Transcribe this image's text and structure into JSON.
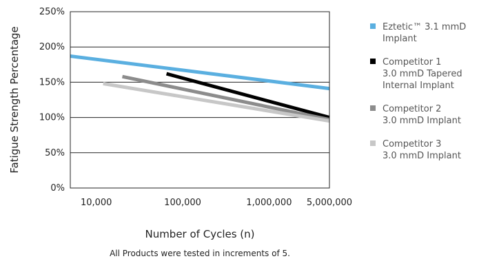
{
  "chart_data": {
    "type": "line",
    "xlabel": "Number of Cycles (n)",
    "ylabel": "Fatigue Strength Percentage",
    "note": "All Products were tested in increments of 5.",
    "x_scale": "log",
    "xlim": [
      5000,
      5000000
    ],
    "ylim": [
      0,
      250
    ],
    "x_ticks": [
      {
        "value": 10000,
        "label": "10,000"
      },
      {
        "value": 100000,
        "label": "100,000"
      },
      {
        "value": 1000000,
        "label": "1,000,000"
      },
      {
        "value": 5000000,
        "label": "5,000,000"
      }
    ],
    "y_ticks": [
      {
        "value": 0,
        "label": "0%"
      },
      {
        "value": 50,
        "label": "50%"
      },
      {
        "value": 100,
        "label": "100%"
      },
      {
        "value": 150,
        "label": "150%"
      },
      {
        "value": 200,
        "label": "200%"
      },
      {
        "value": 250,
        "label": "250%"
      }
    ],
    "grid": "horizontal",
    "legend_position": "right",
    "series": [
      {
        "name": "Eztetic™ 3.1 mmD Implant",
        "legend_lines": [
          "Eztetic™ 3.1 mmD",
          "Implant"
        ],
        "color": "#5aafe0",
        "legend_color": "#5aafe0",
        "points": [
          [
            5000,
            187
          ],
          [
            5000000,
            141
          ]
        ]
      },
      {
        "name": "Competitor 1 3.0 mmD Tapered Internal Implant",
        "legend_lines": [
          "Competitor 1",
          "3.0 mmD Tapered",
          "Internal Implant"
        ],
        "color": "#000000",
        "legend_color": "#000000",
        "points": [
          [
            65000,
            162
          ],
          [
            5000000,
            100
          ]
        ]
      },
      {
        "name": "Competitor 2 3.0 mmD Implant",
        "legend_lines": [
          "Competitor 2",
          "3.0 mmD Implant"
        ],
        "color": "#8c8c8c",
        "legend_color": "#8c8c8c",
        "points": [
          [
            20000,
            158
          ],
          [
            5000000,
            97
          ]
        ]
      },
      {
        "name": "Competitor 3 3.0 mmD Implant",
        "legend_lines": [
          "Competitor 3",
          "3.0 mmD Implant"
        ],
        "color": "#c7c7c7",
        "legend_color": "#c7c7c7",
        "points": [
          [
            12000,
            148
          ],
          [
            5000000,
            95
          ]
        ]
      }
    ]
  }
}
